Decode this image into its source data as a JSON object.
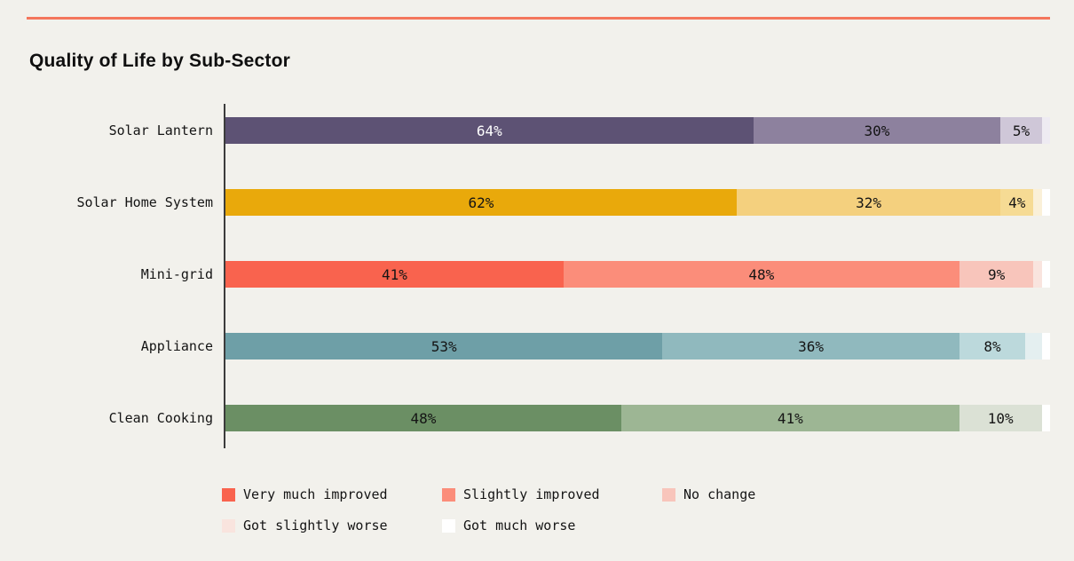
{
  "page": {
    "background_color": "#F2F1EC",
    "top_rule_color": "#F4765C",
    "axis_line_color": "#3C3C3C",
    "text_color": "#141414"
  },
  "chart_data": {
    "type": "bar",
    "variant": "horizontal-stacked-100-percent",
    "title": "Quality of Life by Sub-Sector",
    "xlabel": "",
    "ylabel": "",
    "xlim": [
      0,
      100
    ],
    "grid": false,
    "value_suffix": "%",
    "label_min_value": 4,
    "categories": [
      "Solar Lantern",
      "Solar Home System",
      "Mini-grid",
      "Appliance",
      "Clean Cooking"
    ],
    "series": [
      {
        "name": "Very much improved",
        "values": [
          64,
          62,
          41,
          53,
          48
        ]
      },
      {
        "name": "Slightly improved",
        "values": [
          30,
          32,
          48,
          36,
          41
        ]
      },
      {
        "name": "No change",
        "values": [
          5,
          4,
          9,
          8,
          10
        ]
      },
      {
        "name": "Got slightly worse",
        "values": [
          1,
          1,
          1,
          2,
          0
        ]
      },
      {
        "name": "Got much worse",
        "values": [
          0,
          1,
          1,
          1,
          1
        ]
      }
    ],
    "category_palettes": [
      {
        "category": "Solar Lantern",
        "colors": [
          "#5D5274",
          "#8D819E",
          "#CFC7D8",
          "#EEEBF2",
          "#FFFFFF"
        ],
        "label_colors": [
          "#FFFFFF",
          "#141414",
          "#141414",
          "#141414",
          "#141414"
        ]
      },
      {
        "category": "Solar Home System",
        "colors": [
          "#E9A90B",
          "#F4D07E",
          "#F6DB94",
          "#FAF0D8",
          "#FFFFFF"
        ],
        "label_colors": [
          "#141414",
          "#141414",
          "#141414",
          "#141414",
          "#141414"
        ]
      },
      {
        "category": "Mini-grid",
        "colors": [
          "#F9634E",
          "#FB8D7A",
          "#F8C5BB",
          "#F9E4DE",
          "#FFFFFF"
        ],
        "label_colors": [
          "#141414",
          "#141414",
          "#141414",
          "#141414",
          "#141414"
        ]
      },
      {
        "category": "Appliance",
        "colors": [
          "#6E9FA7",
          "#90B9BE",
          "#BCD9DC",
          "#E4EFF0",
          "#FFFFFF"
        ],
        "label_colors": [
          "#141414",
          "#141414",
          "#141414",
          "#141414",
          "#141414"
        ]
      },
      {
        "category": "Clean Cooking",
        "colors": [
          "#6B8F64",
          "#9DB694",
          "#DBE1D5",
          "#EDEFE9",
          "#FFFFFF"
        ],
        "label_colors": [
          "#141414",
          "#141414",
          "#141414",
          "#141414",
          "#141414"
        ]
      }
    ],
    "legend": {
      "position": "bottom-left",
      "swatch_colors": [
        "#F9634E",
        "#FB8D7A",
        "#F8C5BB",
        "#F9E4DE",
        "#FFFFFF"
      ],
      "rows": [
        [
          "Very much improved",
          "Slightly improved",
          "No change"
        ],
        [
          "Got slightly worse",
          "Got much worse"
        ]
      ]
    }
  }
}
